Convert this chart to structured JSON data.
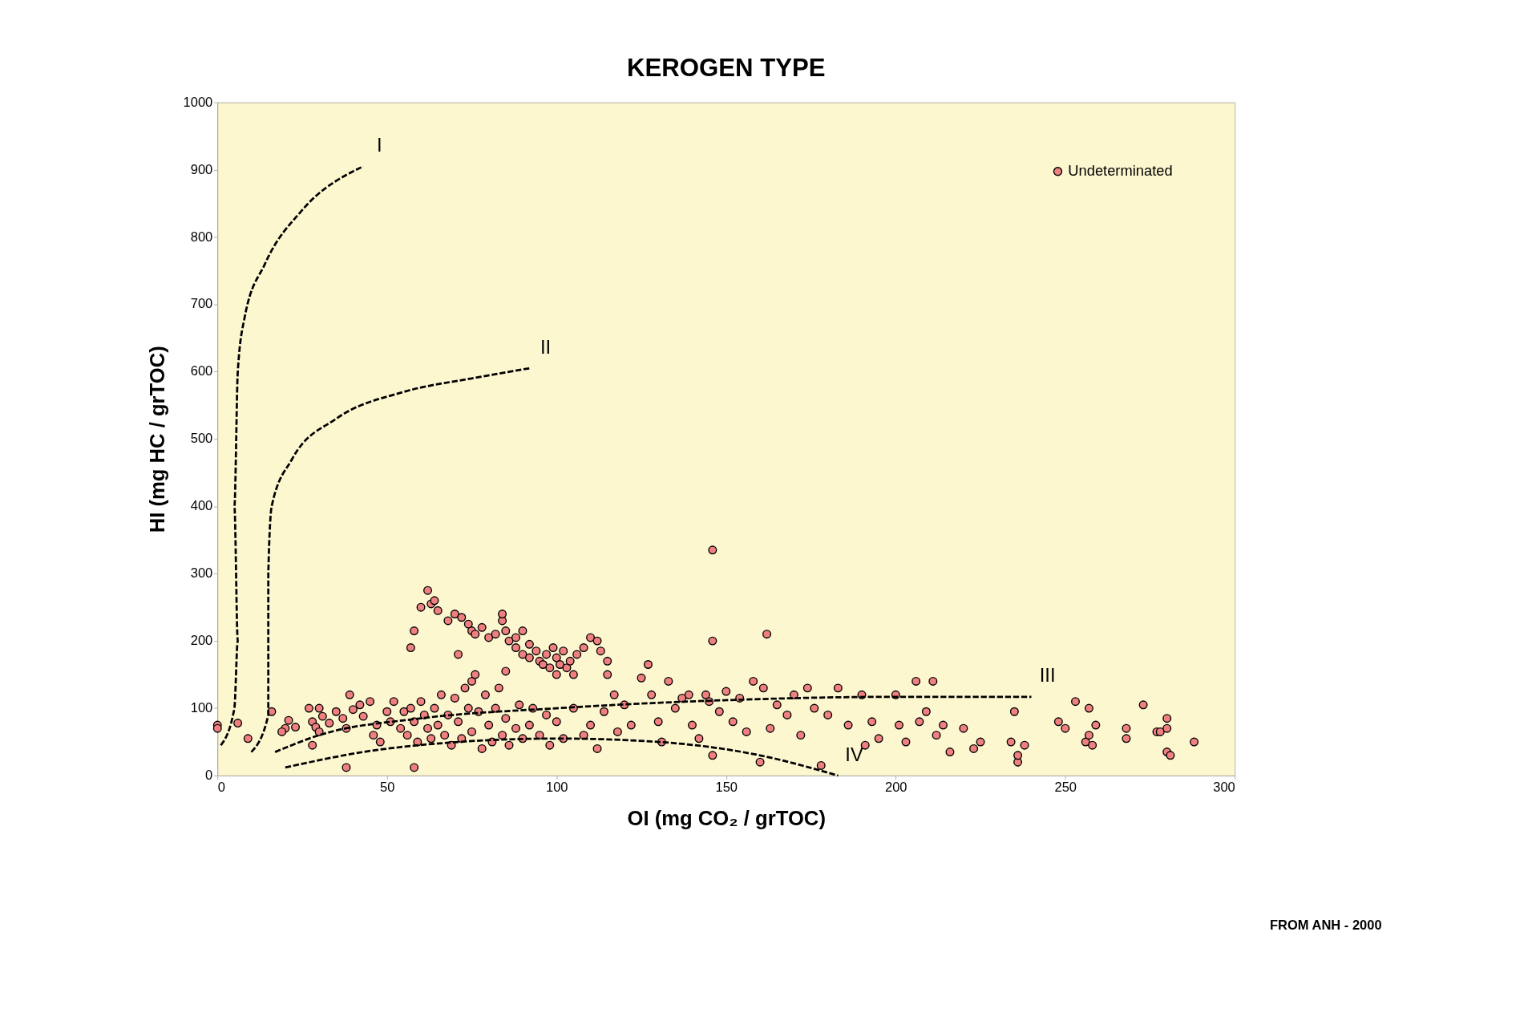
{
  "chart_data": {
    "type": "scatter",
    "title": "KEROGEN TYPE",
    "xlabel": "OI (mg CO₂ / grTOC)",
    "ylabel": "HI  (mg HC / grTOC)",
    "xlim": [
      0,
      300
    ],
    "xticks": [
      0,
      50,
      100,
      150,
      200,
      250,
      300
    ],
    "ylim": [
      0,
      1000
    ],
    "yticks": [
      0,
      100,
      200,
      300,
      400,
      500,
      600,
      700,
      800,
      900,
      1000
    ],
    "grid": false,
    "legend": "top right",
    "series": [
      {
        "name": "Undeterminated",
        "color": "#f08080",
        "marker": "circle",
        "x": [
          57,
          58,
          60,
          62,
          63,
          64,
          65,
          68,
          70,
          72,
          74,
          75,
          76,
          78,
          80,
          82,
          84,
          84,
          85,
          86,
          88,
          88,
          90,
          90,
          92,
          92,
          94,
          95,
          96,
          97,
          98,
          99,
          100,
          100,
          101,
          102,
          103,
          104,
          105,
          106,
          71,
          85,
          110,
          112,
          113,
          115,
          108,
          0,
          0,
          6,
          9,
          16,
          20,
          21,
          23,
          27,
          28,
          29,
          30,
          31,
          33,
          35,
          37,
          38,
          39,
          40,
          42,
          43,
          45,
          46,
          47,
          48,
          50,
          51,
          52,
          54,
          55,
          56,
          57,
          58,
          59,
          60,
          61,
          62,
          63,
          64,
          65,
          66,
          67,
          68,
          69,
          70,
          71,
          72,
          73,
          74,
          75,
          75,
          76,
          77,
          78,
          79,
          80,
          81,
          82,
          83,
          84,
          85,
          86,
          88,
          89,
          90,
          92,
          93,
          95,
          97,
          98,
          100,
          102,
          105,
          108,
          110,
          112,
          114,
          115,
          117,
          118,
          120,
          122,
          125,
          127,
          128,
          130,
          131,
          133,
          135,
          137,
          139,
          140,
          142,
          144,
          145,
          146,
          148,
          150,
          152,
          154,
          156,
          158,
          160,
          161,
          163,
          165,
          168,
          170,
          172,
          174,
          176,
          178,
          180,
          183,
          186,
          190,
          191,
          193,
          195,
          200,
          201,
          203,
          206,
          207,
          209,
          211,
          212,
          214,
          216,
          220,
          223,
          225,
          234,
          235,
          236,
          236,
          238,
          248,
          250,
          253,
          256,
          257,
          257,
          258,
          259,
          268,
          268,
          273,
          277,
          278,
          280,
          280,
          280,
          281,
          288,
          38,
          58,
          146,
          146,
          162,
          30,
          19,
          28
        ],
        "values": [
          190,
          215,
          250,
          275,
          255,
          260,
          245,
          230,
          240,
          235,
          225,
          215,
          210,
          220,
          205,
          210,
          230,
          240,
          215,
          200,
          205,
          190,
          215,
          180,
          195,
          175,
          185,
          170,
          165,
          180,
          160,
          190,
          175,
          150,
          165,
          185,
          160,
          170,
          150,
          180,
          180,
          155,
          205,
          200,
          185,
          170,
          190,
          75,
          70,
          78,
          55,
          95,
          70,
          82,
          72,
          100,
          80,
          72,
          100,
          88,
          78,
          95,
          85,
          70,
          120,
          98,
          105,
          88,
          110,
          60,
          75,
          50,
          95,
          80,
          110,
          70,
          95,
          60,
          100,
          80,
          50,
          110,
          90,
          70,
          55,
          100,
          75,
          120,
          60,
          90,
          45,
          115,
          80,
          55,
          130,
          100,
          140,
          65,
          150,
          95,
          40,
          120,
          75,
          50,
          100,
          130,
          60,
          85,
          45,
          70,
          105,
          55,
          75,
          100,
          60,
          90,
          45,
          80,
          55,
          100,
          60,
          75,
          40,
          95,
          150,
          120,
          65,
          105,
          75,
          145,
          165,
          120,
          80,
          50,
          140,
          100,
          115,
          120,
          75,
          55,
          120,
          110,
          30,
          95,
          125,
          80,
          115,
          65,
          140,
          20,
          130,
          70,
          105,
          90,
          120,
          60,
          130,
          100,
          15,
          90,
          130,
          75,
          120,
          45,
          80,
          55,
          120,
          75,
          50,
          140,
          80,
          95,
          140,
          60,
          75,
          35,
          70,
          40,
          50,
          50,
          95,
          20,
          30,
          45,
          80,
          70,
          110,
          50,
          60,
          100,
          45,
          75,
          70,
          55,
          105,
          65,
          65,
          85,
          70,
          35,
          30,
          50,
          12,
          12,
          335,
          200,
          210,
          65,
          65,
          45
        ]
      },
      {
        "name": "I",
        "type": "line",
        "color": "#000000",
        "line_style": "dashed",
        "x": [
          1,
          5,
          6,
          5,
          6,
          8,
          14,
          25,
          43
        ],
        "values": [
          45,
          100,
          200,
          400,
          600,
          680,
          760,
          840,
          905
        ]
      },
      {
        "name": "II",
        "type": "line",
        "color": "#000000",
        "line_style": "dashed",
        "x": [
          10,
          15,
          15,
          16,
          22,
          35,
          55,
          75,
          92
        ],
        "values": [
          35,
          90,
          300,
          400,
          470,
          530,
          570,
          590,
          605
        ]
      },
      {
        "name": "III",
        "type": "line",
        "color": "#000000",
        "line_style": "dashed",
        "x": [
          17,
          30,
          60,
          100,
          150,
          200,
          240
        ],
        "values": [
          35,
          60,
          85,
          100,
          112,
          117,
          117
        ]
      },
      {
        "name": "IV",
        "type": "line",
        "color": "#000000",
        "line_style": "dashed",
        "x": [
          20,
          50,
          100,
          130,
          160,
          183
        ],
        "values": [
          12,
          40,
          55,
          50,
          30,
          0
        ]
      }
    ],
    "annotations": [
      "FROM ANH - 2000"
    ]
  }
}
